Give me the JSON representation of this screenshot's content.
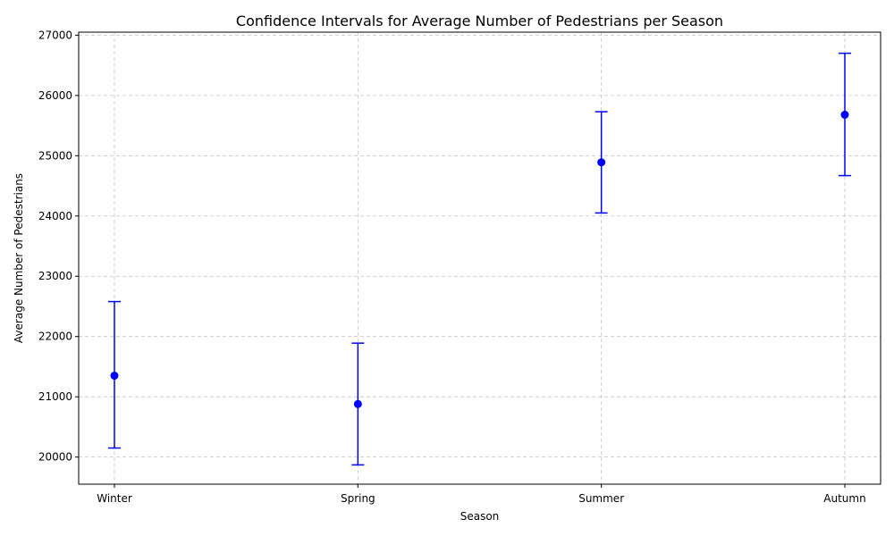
{
  "chart_data": {
    "type": "scatter",
    "title": "Confidence Intervals for Average Number of Pedestrians per Season",
    "xlabel": "Season",
    "ylabel": "Average Number of Pedestrians",
    "categories": [
      "Winter",
      "Spring",
      "Summer",
      "Autumn"
    ],
    "series": [
      {
        "mean": [
          21350,
          20880,
          24890,
          25680
        ],
        "ci_lower": [
          20150,
          19870,
          24050,
          24670
        ],
        "ci_upper": [
          22580,
          21890,
          25730,
          26700
        ]
      }
    ],
    "ylim": [
      19550,
      27050
    ],
    "yticks": [
      20000,
      21000,
      22000,
      23000,
      24000,
      25000,
      26000,
      27000
    ],
    "grid": true,
    "color": "#0000ff"
  }
}
